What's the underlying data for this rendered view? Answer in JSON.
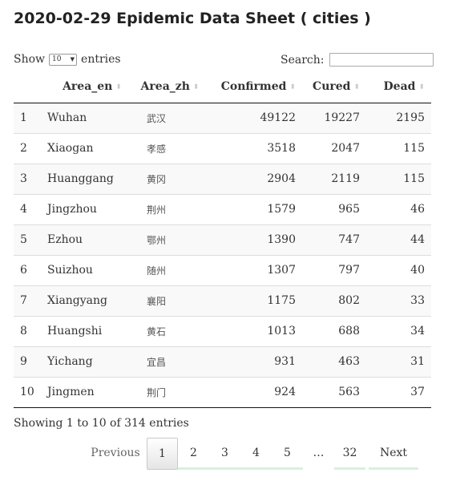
{
  "page_title": "2020-02-29 Epidemic Data Sheet ( cities )",
  "length_control": {
    "prefix": "Show",
    "selected": "10",
    "suffix": "entries"
  },
  "search": {
    "label": "Search:",
    "value": ""
  },
  "table": {
    "columns": [
      "",
      "Area_en",
      "Area_zh",
      "Confirmed",
      "Cured",
      "Dead"
    ],
    "rows": [
      [
        "1",
        "Wuhan",
        "武汉",
        "49122",
        "19227",
        "2195"
      ],
      [
        "2",
        "Xiaogan",
        "孝感",
        "3518",
        "2047",
        "115"
      ],
      [
        "3",
        "Huanggang",
        "黄冈",
        "2904",
        "2119",
        "115"
      ],
      [
        "4",
        "Jingzhou",
        "荆州",
        "1579",
        "965",
        "46"
      ],
      [
        "5",
        "Ezhou",
        "鄂州",
        "1390",
        "747",
        "44"
      ],
      [
        "6",
        "Suizhou",
        "随州",
        "1307",
        "797",
        "40"
      ],
      [
        "7",
        "Xiangyang",
        "襄阳",
        "1175",
        "802",
        "33"
      ],
      [
        "8",
        "Huangshi",
        "黄石",
        "1013",
        "688",
        "34"
      ],
      [
        "9",
        "Yichang",
        "宜昌",
        "931",
        "463",
        "31"
      ],
      [
        "10",
        "Jingmen",
        "荆门",
        "924",
        "563",
        "37"
      ]
    ]
  },
  "info_text": "Showing 1 to 10 of 314 entries",
  "pagination": {
    "previous": "Previous",
    "pages": [
      "1",
      "2",
      "3",
      "4",
      "5"
    ],
    "ellipsis": "…",
    "last_page": "32",
    "next": "Next",
    "current": "1"
  }
}
